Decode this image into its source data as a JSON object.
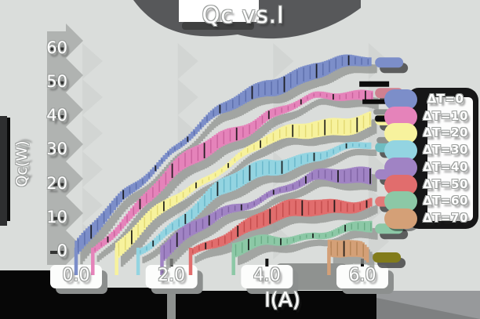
{
  "title": "Qc vs.I",
  "axes": {
    "xlabel": "I(A)",
    "ylabel": "Qc(W)",
    "xticks": [
      "0.0",
      "2.0",
      "4.0",
      "6.0"
    ],
    "xtick_values": [
      0,
      2,
      4,
      6
    ],
    "yticks": [
      "0",
      "10",
      "20",
      "30",
      "40",
      "50",
      "60"
    ],
    "ytick_values": [
      0,
      10,
      20,
      30,
      40,
      50,
      60
    ]
  },
  "colors": {
    "background": "#dadddb",
    "shadow_gray": "#8f928f",
    "dark_blob": "#57585a",
    "black_region": "#070707",
    "text": "#ffffff",
    "text_outline": "#9b9e9c"
  },
  "chart_data": {
    "type": "line",
    "title": "Qc vs.I",
    "xlabel": "I(A)",
    "ylabel": "Qc(W)",
    "xlim": [
      0,
      6.6
    ],
    "ylim": [
      0,
      62
    ],
    "grid": false,
    "legend_position": "right",
    "xticks": [
      0,
      2,
      4,
      6
    ],
    "yticks": [
      0,
      10,
      20,
      30,
      40,
      50,
      60
    ],
    "series": [
      {
        "label": "ΔT=0",
        "color": "#7c8ec9",
        "hatch": "#5a6ca8",
        "cap": "#7c8ec9",
        "points": [
          [
            0,
            0
          ],
          [
            1,
            16.5
          ],
          [
            2,
            30.5
          ],
          [
            3,
            41
          ],
          [
            4,
            49
          ],
          [
            5,
            54
          ],
          [
            6,
            55.8
          ],
          [
            6.2,
            56
          ]
        ]
      },
      {
        "label": "ΔT=10",
        "color": "#e583ba",
        "hatch": "#c75f9a",
        "cap": "#cf8090",
        "points": [
          [
            0.35,
            0
          ],
          [
            1,
            10
          ],
          [
            2,
            23
          ],
          [
            3,
            33
          ],
          [
            4,
            40.5
          ],
          [
            5,
            45
          ],
          [
            6,
            46.8
          ],
          [
            6.2,
            47
          ]
        ]
      },
      {
        "label": "ΔT=20",
        "color": "#f7f29d",
        "hatch": "#e0d66e",
        "cap": "#f7f29d",
        "points": [
          [
            0.85,
            0
          ],
          [
            2,
            15
          ],
          [
            3,
            25
          ],
          [
            4,
            32.5
          ],
          [
            5,
            37
          ],
          [
            6,
            38.8
          ],
          [
            6.2,
            39
          ]
        ]
      },
      {
        "label": "ΔT=30",
        "color": "#93d4e1",
        "hatch": "#64b4c8",
        "cap": "#6fbdc2",
        "points": [
          [
            1.3,
            0
          ],
          [
            2,
            8
          ],
          [
            3,
            18
          ],
          [
            4,
            25
          ],
          [
            5,
            29
          ],
          [
            6,
            30.8
          ],
          [
            6.2,
            31
          ]
        ]
      },
      {
        "label": "ΔT=40",
        "color": "#a083c4",
        "hatch": "#7b5fa0",
        "cap": "#a083c4",
        "points": [
          [
            1.8,
            0
          ],
          [
            3,
            11
          ],
          [
            4,
            17.5
          ],
          [
            5,
            21.5
          ],
          [
            6,
            22.8
          ],
          [
            6.2,
            23
          ]
        ]
      },
      {
        "label": "ΔT=50",
        "color": "#e16d6d",
        "hatch": "#c04848",
        "cap": "#e17a78",
        "points": [
          [
            2.4,
            0
          ],
          [
            3,
            4.5
          ],
          [
            4,
            10
          ],
          [
            5,
            13.5
          ],
          [
            6,
            14.8
          ],
          [
            6.2,
            15
          ]
        ]
      },
      {
        "label": "ΔT=60",
        "color": "#8cc8a6",
        "hatch": "#67a883",
        "cap": "#8cc8a6",
        "points": [
          [
            3.3,
            0
          ],
          [
            4,
            3
          ],
          [
            5,
            5.8
          ],
          [
            6,
            6.9
          ],
          [
            6.2,
            7
          ]
        ]
      },
      {
        "label": "ΔT=70",
        "color": "#d4a077",
        "hatch": "#b07f52",
        "cap": "#827c1b",
        "points": [
          [
            5.3,
            0
          ],
          [
            5.7,
            0.8
          ],
          [
            6.0,
            0.3
          ],
          [
            6.15,
            -1.5
          ]
        ]
      }
    ]
  }
}
